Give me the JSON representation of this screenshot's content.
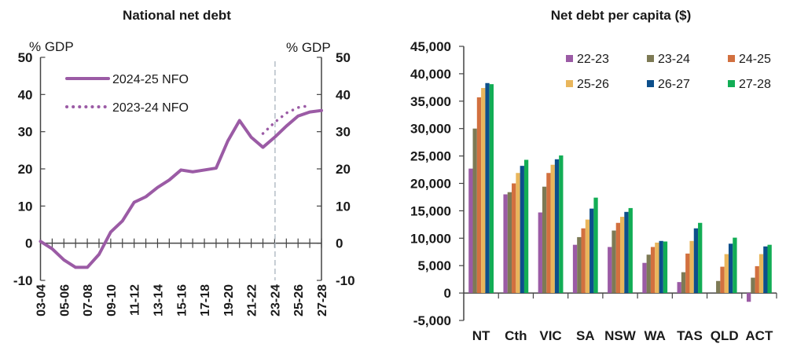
{
  "chart_data": [
    {
      "type": "line",
      "title": "National net debt",
      "ylabel_left": "% GDP",
      "ylabel_right": "% GDP",
      "ylim": [
        -10,
        50
      ],
      "yticks": [
        "-10",
        "0",
        "10",
        "20",
        "30",
        "40",
        "50"
      ],
      "x": [
        "03-04",
        "04-05",
        "05-06",
        "06-07",
        "07-08",
        "08-09",
        "09-10",
        "10-11",
        "11-12",
        "12-13",
        "13-14",
        "14-15",
        "15-16",
        "16-17",
        "17-18",
        "18-19",
        "19-20",
        "20-21",
        "21-22",
        "22-23",
        "23-24",
        "24-25",
        "25-26",
        "26-27",
        "27-28"
      ],
      "xtick_labels": [
        "03-04",
        "05-06",
        "07-08",
        "09-10",
        "11-12",
        "13-14",
        "15-16",
        "17-18",
        "19-20",
        "21-22",
        "23-24",
        "25-26",
        "27-28"
      ],
      "vertical_marker": "23-24",
      "series": [
        {
          "name": "2024-25 NFO",
          "style": "solid",
          "color": "#9b5ba5",
          "values": [
            0.5,
            -1.5,
            -4.5,
            -6.5,
            -6.5,
            -3,
            3,
            6,
            11,
            12.5,
            15,
            17,
            19.7,
            19.2,
            19.7,
            20.2,
            27.5,
            33,
            28.5,
            25.8,
            28.5,
            31.5,
            34.2,
            35.3,
            35.7
          ]
        },
        {
          "name": "2023-24 NFO",
          "style": "dotted",
          "color": "#9b5ba5",
          "values": [
            null,
            null,
            null,
            null,
            null,
            null,
            null,
            null,
            null,
            null,
            null,
            null,
            null,
            null,
            null,
            null,
            null,
            null,
            null,
            29.5,
            32.5,
            35,
            36.5,
            37,
            null
          ]
        }
      ],
      "legend": "top-left"
    },
    {
      "type": "bar",
      "title": "Net debt per capita ($)",
      "ylim": [
        -5000,
        45000
      ],
      "yticks": [
        "-5,000",
        "0",
        "5,000",
        "10,000",
        "15,000",
        "20,000",
        "25,000",
        "30,000",
        "35,000",
        "40,000",
        "45,000"
      ],
      "categories": [
        "NT",
        "Cth",
        "VIC",
        "SA",
        "NSW",
        "WA",
        "TAS",
        "QLD",
        "ACT"
      ],
      "series": [
        {
          "name": "22-23",
          "color": "#9b5ba5",
          "values": [
            22700,
            18000,
            14700,
            8800,
            8400,
            5500,
            2000,
            0,
            -1600
          ]
        },
        {
          "name": "23-24",
          "color": "#7d7a55",
          "values": [
            30000,
            18400,
            19400,
            10200,
            11400,
            7000,
            3800,
            2200,
            2800
          ]
        },
        {
          "name": "24-25",
          "color": "#d2703f",
          "values": [
            35700,
            20000,
            21900,
            11800,
            12800,
            8400,
            7200,
            4800,
            4900
          ]
        },
        {
          "name": "25-26",
          "color": "#e9b65c",
          "values": [
            37400,
            21900,
            23400,
            13400,
            13900,
            9200,
            9500,
            7100,
            7100
          ]
        },
        {
          "name": "26-27",
          "color": "#0d4f8b",
          "values": [
            38300,
            23200,
            24400,
            15400,
            14800,
            9500,
            11800,
            9000,
            8500
          ]
        },
        {
          "name": "27-28",
          "color": "#12ad55",
          "values": [
            38100,
            24300,
            25100,
            17400,
            15500,
            9400,
            12800,
            10100,
            8800
          ]
        }
      ],
      "legend": "top-right"
    }
  ]
}
